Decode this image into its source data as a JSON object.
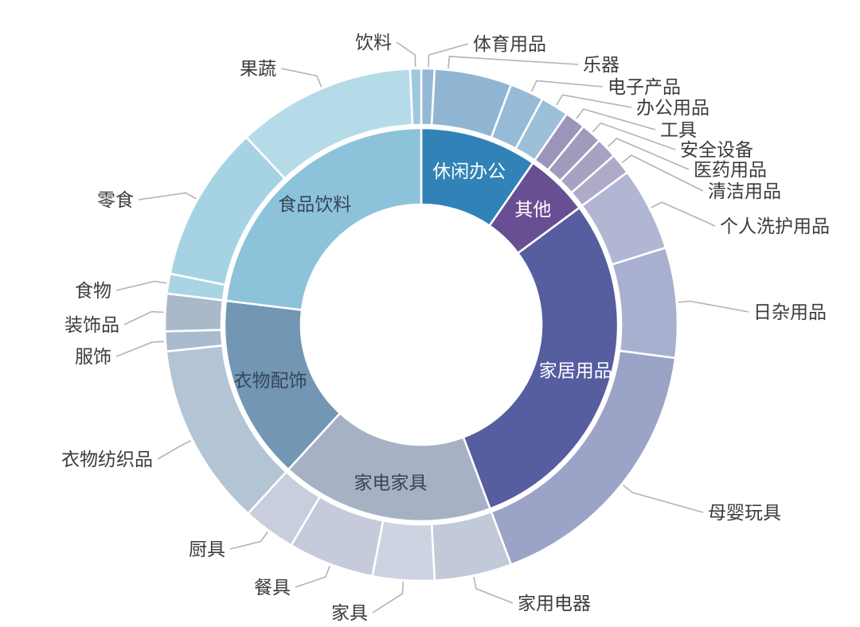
{
  "chart_data": {
    "type": "sunburst",
    "rings": [
      "category-inner",
      "subcategory-outer"
    ],
    "angle_unit": "degrees clockwise from 12 o'clock",
    "legend_position": "none",
    "grid": false,
    "inner": [
      {
        "id": "leisure-office",
        "label": "休闲办公",
        "start": 0,
        "end": 34.6,
        "pct": 9.6,
        "color": "#3182b6",
        "label_color": "#ffffff"
      },
      {
        "id": "other",
        "label": "其他",
        "start": 34.6,
        "end": 53.5,
        "pct": 5.3,
        "color": "#684f93",
        "label_color": "#ffffff"
      },
      {
        "id": "home-goods",
        "label": "家居用品",
        "start": 53.5,
        "end": 159.5,
        "pct": 29.4,
        "color": "#565ea0",
        "label_color": "#ffffff"
      },
      {
        "id": "appliances-furniture",
        "label": "家电家具",
        "start": 159.5,
        "end": 222.5,
        "pct": 17.5,
        "color": "#a6b1c4",
        "label_color": "#35455a"
      },
      {
        "id": "clothing-accessories",
        "label": "衣物配饰",
        "start": 222.5,
        "end": 277,
        "pct": 15.1,
        "color": "#7296b4",
        "label_color": "#35455a"
      },
      {
        "id": "food-beverage",
        "label": "食品饮料",
        "start": 277,
        "end": 360,
        "pct": 23.1,
        "color": "#8dc2db",
        "label_color": "#35455a"
      }
    ],
    "outer": [
      {
        "id": "sports-goods",
        "label": "体育用品",
        "parent": "休闲办公",
        "start": 0,
        "end": 3,
        "pct": 0.8,
        "color": "#93b9d4"
      },
      {
        "id": "musical-instruments",
        "label": "乐器",
        "parent": "休闲办公",
        "start": 3,
        "end": 20.5,
        "pct": 4.9,
        "color": "#8fb5d2"
      },
      {
        "id": "electronics",
        "label": "电子产品",
        "parent": "休闲办公",
        "start": 20.5,
        "end": 28.2,
        "pct": 2.1,
        "color": "#97bad6"
      },
      {
        "id": "office-supplies",
        "label": "办公用品",
        "parent": "休闲办公",
        "start": 28.2,
        "end": 34.6,
        "pct": 1.8,
        "color": "#9dc0da"
      },
      {
        "id": "tools",
        "label": "工具",
        "parent": "其他",
        "start": 34.6,
        "end": 39.3,
        "pct": 1.3,
        "color": "#9b95b9"
      },
      {
        "id": "safety-equipment",
        "label": "安全设备",
        "parent": "其他",
        "start": 39.3,
        "end": 44,
        "pct": 1.3,
        "color": "#a09abc"
      },
      {
        "id": "medical-supplies",
        "label": "医药用品",
        "parent": "其他",
        "start": 44,
        "end": 48.7,
        "pct": 1.3,
        "color": "#a7a2c2"
      },
      {
        "id": "cleaning-supplies",
        "label": "清洁用品",
        "parent": "其他",
        "start": 48.7,
        "end": 53.5,
        "pct": 1.3,
        "color": "#aeaac8"
      },
      {
        "id": "personal-care",
        "label": "个人洗护用品",
        "parent": "家居用品",
        "start": 53.5,
        "end": 72.5,
        "pct": 5.3,
        "color": "#b1b7d3"
      },
      {
        "id": "daily-sundries",
        "label": "日杂用品",
        "parent": "家居用品",
        "start": 72.5,
        "end": 97.5,
        "pct": 6.9,
        "color": "#a9b0cf"
      },
      {
        "id": "mother-baby-toys",
        "label": "母婴玩具",
        "parent": "家居用品",
        "start": 97.5,
        "end": 159.5,
        "pct": 17.2,
        "color": "#9ba3c6"
      },
      {
        "id": "home-appliances",
        "label": "家用电器",
        "parent": "家电家具",
        "start": 159.5,
        "end": 177,
        "pct": 4.9,
        "color": "#c2c9d8"
      },
      {
        "id": "furniture",
        "label": "家具",
        "parent": "家电家具",
        "start": 177,
        "end": 191,
        "pct": 3.9,
        "color": "#cdd3e0"
      },
      {
        "id": "tableware",
        "label": "餐具",
        "parent": "家电家具",
        "start": 191,
        "end": 210.5,
        "pct": 5.4,
        "color": "#c5cbda"
      },
      {
        "id": "kitchenware",
        "label": "厨具",
        "parent": "家电家具",
        "start": 210.5,
        "end": 222.5,
        "pct": 3.3,
        "color": "#c8cedd"
      },
      {
        "id": "clothing-textiles",
        "label": "衣物纺织品",
        "parent": "衣物配饰",
        "start": 222.5,
        "end": 264,
        "pct": 11.5,
        "color": "#b3c5d4"
      },
      {
        "id": "apparel",
        "label": "服饰",
        "parent": "衣物配饰",
        "start": 264,
        "end": 268.5,
        "pct": 1.3,
        "color": "#a9bccd"
      },
      {
        "id": "decorations",
        "label": "装饰品",
        "parent": "衣物配饰",
        "start": 268.5,
        "end": 277,
        "pct": 2.4,
        "color": "#aab9c9"
      },
      {
        "id": "food",
        "label": "食物",
        "parent": "食品饮料",
        "start": 277,
        "end": 281.5,
        "pct": 1.3,
        "color": "#a9d4e4"
      },
      {
        "id": "snacks",
        "label": "零食",
        "parent": "食品饮料",
        "start": 281.5,
        "end": 317,
        "pct": 9.9,
        "color": "#a6d3e3"
      },
      {
        "id": "fruits-vegetables",
        "label": "果蔬",
        "parent": "食品饮料",
        "start": 317,
        "end": 357.5,
        "pct": 11.3,
        "color": "#b5dbe9"
      },
      {
        "id": "beverages",
        "label": "饮料",
        "parent": "食品饮料",
        "start": 357.5,
        "end": 360,
        "pct": 0.7,
        "color": "#9dc8de"
      }
    ]
  },
  "colors": {
    "background": "#ffffff",
    "outer_label_text": "#3c3c3c",
    "leader_line": "#b3b3b3"
  }
}
